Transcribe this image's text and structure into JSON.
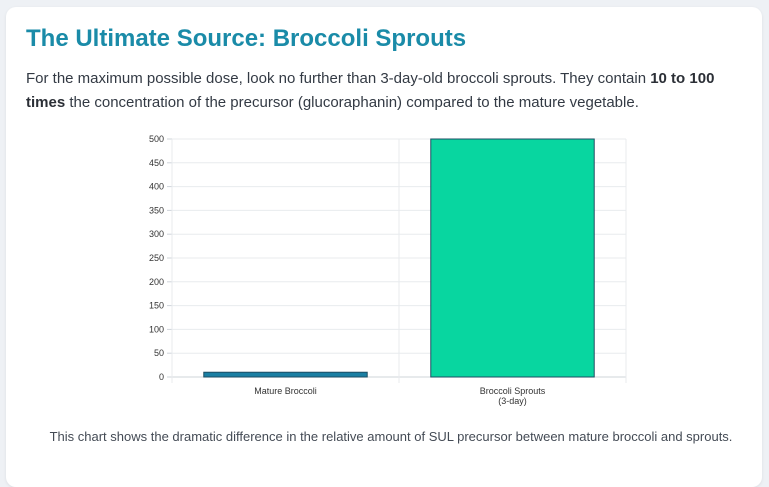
{
  "header": {
    "title": "The Ultimate Source: Broccoli Sprouts",
    "intro_before": "For the maximum possible dose, look no further than 3-day-old broccoli sprouts. They contain ",
    "intro_bold": "10 to 100 times",
    "intro_after": " the concentration of the precursor (glucoraphanin) compared to the mature vegetable."
  },
  "caption": "This chart shows the dramatic difference in the relative amount of SUL precursor between mature broccoli and sprouts.",
  "chart_data": {
    "type": "bar",
    "categories": [
      [
        "Mature Broccoli"
      ],
      [
        "Broccoli Sprouts",
        "(3-day)"
      ]
    ],
    "values": [
      10,
      500
    ],
    "ylim": [
      0,
      500
    ],
    "yticks": [
      0,
      50,
      100,
      150,
      200,
      250,
      300,
      350,
      400,
      450,
      500
    ],
    "colors": [
      "#1a7fa3",
      "#08d6a0"
    ],
    "edge_color": "#1c4e63",
    "grid": true,
    "legend": "none"
  }
}
